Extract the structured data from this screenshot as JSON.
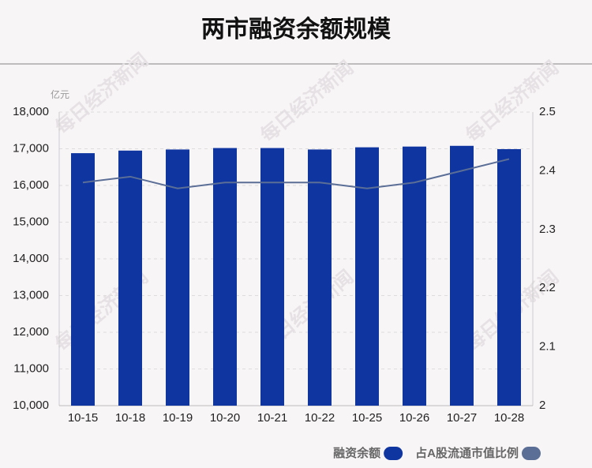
{
  "chart_data": {
    "type": "bar-line",
    "title": "两市融资余额规模",
    "y_unit": "亿元",
    "watermark": "每日经济新闻",
    "categories": [
      "10-15",
      "10-18",
      "10-19",
      "10-20",
      "10-21",
      "10-22",
      "10-25",
      "10-26",
      "10-27",
      "10-28"
    ],
    "series": [
      {
        "name": "融资余额",
        "type": "bar",
        "color": "#0f35a0",
        "values": [
          16880,
          16950,
          16980,
          17020,
          17020,
          16980,
          17040,
          17060,
          17080,
          16990
        ]
      },
      {
        "name": "占A股流通市值比例",
        "type": "line",
        "axis": "y2",
        "color": "#5a6e96",
        "values": [
          2.38,
          2.39,
          2.37,
          2.38,
          2.38,
          2.38,
          2.37,
          2.38,
          2.4,
          2.42
        ]
      }
    ],
    "ylim": [
      10000,
      18000
    ],
    "yticks": [
      {
        "value": 10000,
        "label": "10,000"
      },
      {
        "value": 11000,
        "label": "11,000"
      },
      {
        "value": 12000,
        "label": "12,000"
      },
      {
        "value": 13000,
        "label": "13,000"
      },
      {
        "value": 14000,
        "label": "14,000"
      },
      {
        "value": 15000,
        "label": "15,000"
      },
      {
        "value": 16000,
        "label": "16,000"
      },
      {
        "value": 17000,
        "label": "17,000"
      },
      {
        "value": 18000,
        "label": "18,000"
      }
    ],
    "y2lim": [
      2,
      2.5
    ],
    "y2ticks": [
      2,
      2.1,
      2.2,
      2.3,
      2.4,
      2.5
    ],
    "grid": true,
    "legend": "bottom-right"
  }
}
